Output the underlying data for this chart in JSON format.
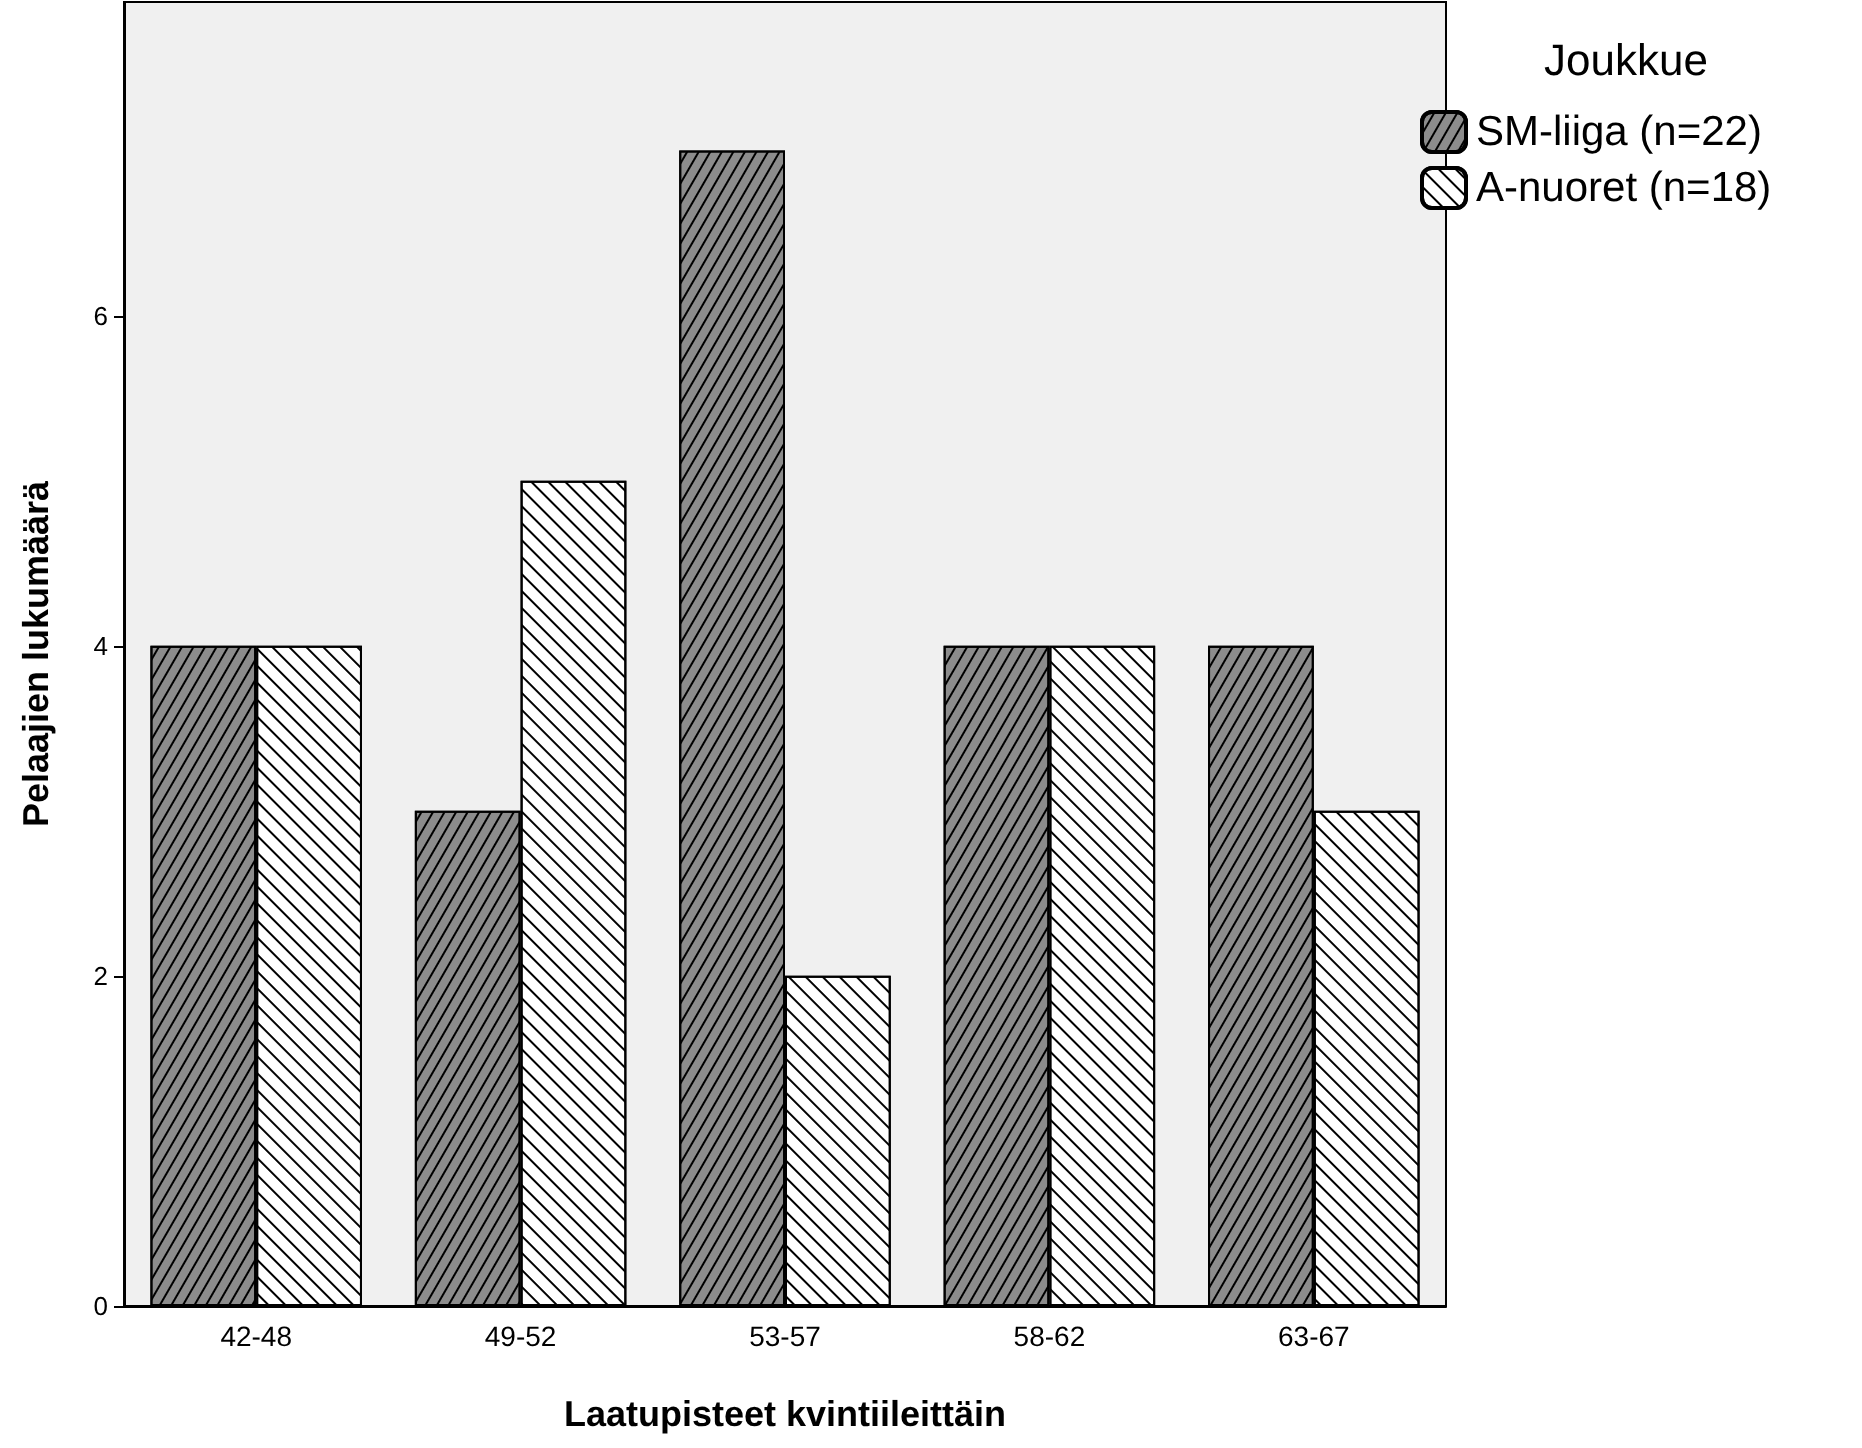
{
  "chart_data": {
    "type": "bar",
    "xlabel": "Laatupisteet kvintiileittäin",
    "ylabel": "Pelaajien lukumäärä",
    "legend_title": "Joukkue",
    "categories": [
      "42-48",
      "49-52",
      "53-57",
      "58-62",
      "63-67"
    ],
    "series": [
      {
        "name": "SM-liiga (n=22)",
        "color": "#8c8c8c",
        "values": [
          4,
          3,
          7,
          4,
          4
        ]
      },
      {
        "name": "A-nuoret (n=18)",
        "color": "#ffffff",
        "values": [
          4,
          5,
          2,
          4,
          3
        ]
      }
    ],
    "ylim": [
      0,
      7.9
    ],
    "yticks": [
      0,
      2,
      4,
      6
    ],
    "grid": false,
    "legend": "right"
  }
}
